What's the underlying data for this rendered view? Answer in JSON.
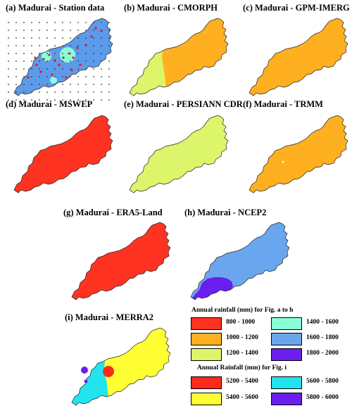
{
  "panels": [
    {
      "title": "(a) Madurai - Station data"
    },
    {
      "title": "(b) Madurai - CMORPH"
    },
    {
      "title": "(c) Madurai - GPM-IMERG"
    },
    {
      "title": "(d) Madurai - MSWEP"
    },
    {
      "title": "(e) Madurai - PERSIANN CDR"
    },
    {
      "title": "(f) Madurai - TRMM"
    },
    {
      "title": "(g) Madurai - ERA5-Land"
    },
    {
      "title": "(h) Madurai - NCEP2"
    },
    {
      "title": "(i) Madurai - MERRA2"
    }
  ],
  "legend_a_h": {
    "title": "Annual rainfall (mm) for Fig. a to h",
    "items": [
      {
        "label": "800 - 1000",
        "color": "#ff3322"
      },
      {
        "label": "1400 - 1600",
        "color": "#88ffd8"
      },
      {
        "label": "1000 - 1200",
        "color": "#ffb020"
      },
      {
        "label": "1600 - 1800",
        "color": "#6aa6ee"
      },
      {
        "label": "1200 - 1400",
        "color": "#ddf56a"
      },
      {
        "label": "1800 - 2000",
        "color": "#6a1ef0"
      }
    ]
  },
  "legend_i": {
    "title": "Annual Rainfall (mm) for Fig. i",
    "items": [
      {
        "label": "5200 - 5400",
        "color": "#ff2a1a"
      },
      {
        "label": "5600 - 5800",
        "color": "#22e4ee"
      },
      {
        "label": "5400 - 5600",
        "color": "#ffff33"
      },
      {
        "label": "5800 - 6000",
        "color": "#6a1ef0"
      }
    ]
  },
  "colors": {
    "station_base": "#5c9aea",
    "station_hotspot": "#88ffd8",
    "station_marker": "#e8102a",
    "grid_dot": "#333333",
    "cmorph_main": "#ffb020",
    "cmorph_west": "#ddf56a",
    "imerg": "#ffb020",
    "mswep": "#ff3322",
    "persiann": "#ddf56a",
    "trmm": "#ffb020",
    "era5": "#ff3322",
    "ncep2_main": "#6aa6ee",
    "ncep2_south": "#6a1ef0",
    "merra_main": "#ffff33",
    "merra_west": "#22e4ee",
    "merra_red": "#ff2a1a",
    "merra_purple": "#6a1ef0"
  }
}
